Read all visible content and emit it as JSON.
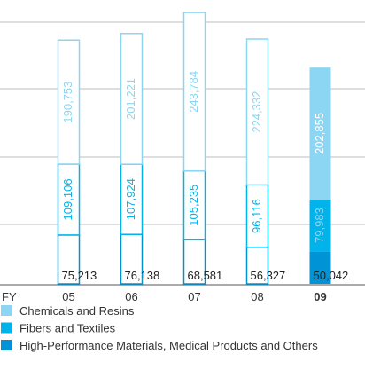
{
  "chart_data": {
    "type": "stacked-bar",
    "x_label": "FY",
    "categories": [
      "05",
      "06",
      "07",
      "08",
      "09"
    ],
    "highlight": 4,
    "series": [
      {
        "name": "Chemicals and Resins",
        "color": "#8cd6f3",
        "values": [
          190753,
          201221,
          243784,
          224332,
          202855
        ],
        "value_labels": [
          "190,753",
          "201,221",
          "243,784",
          "224,332",
          "202,855"
        ]
      },
      {
        "name": "Fibers and Textiles",
        "color": "#00b4eb",
        "values": [
          109106,
          107924,
          105235,
          96116,
          79983
        ],
        "value_labels": [
          "109,106",
          "107,924",
          "105,235",
          "96,116",
          "79,983"
        ]
      },
      {
        "name": "High-Performance Materials, Medical Products and Others",
        "color": "#0093d5",
        "values": [
          75213,
          76138,
          68581,
          56327,
          50042
        ],
        "value_labels": [
          "75,213",
          "76,138",
          "68,581",
          "56,327",
          "50,042"
        ]
      }
    ],
    "ylim": [
      0,
      430000
    ]
  }
}
